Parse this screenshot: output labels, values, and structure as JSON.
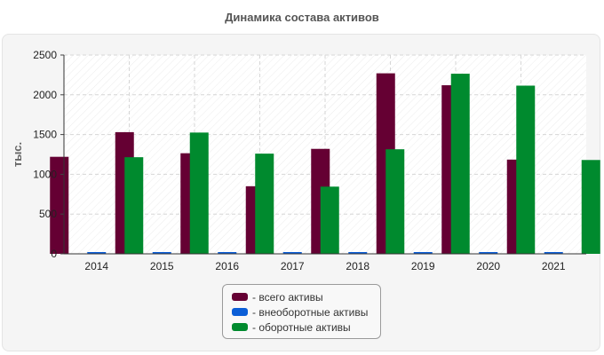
{
  "chart_data": {
    "type": "bar",
    "title": "Динамика состава активов",
    "ylabel": "тыс.",
    "xlabel": "",
    "categories": [
      "2014",
      "2015",
      "2016",
      "2017",
      "2018",
      "2019",
      "2020",
      "2021"
    ],
    "ylim": [
      0,
      2500
    ],
    "yticks": [
      0,
      500,
      1000,
      1500,
      2000,
      2500
    ],
    "ytick_labels": [
      "0",
      "500",
      "1000",
      "1500",
      "2000",
      "2500"
    ],
    "grid": true,
    "legend_position": "bottom-center",
    "series": [
      {
        "name": "- всего активы",
        "color": "#650033",
        "values": [
          1220,
          1530,
          1265,
          850,
          1320,
          2270,
          2120,
          1185
        ]
      },
      {
        "name": "- внеоборотные активы",
        "color": "#0b5ed7",
        "values": [
          5,
          5,
          5,
          5,
          5,
          5,
          5,
          5
        ]
      },
      {
        "name": "- оборотные активы",
        "color": "#008a2e",
        "values": [
          1215,
          1525,
          1260,
          845,
          1315,
          2265,
          2115,
          1180
        ]
      }
    ]
  }
}
